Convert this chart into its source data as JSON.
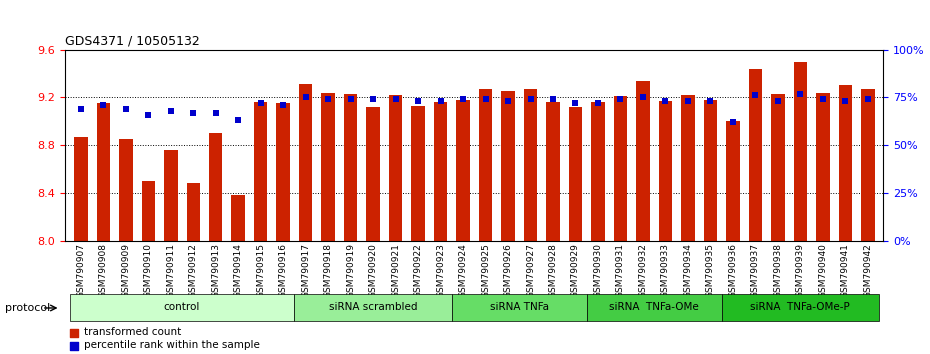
{
  "title": "GDS4371 / 10505132",
  "samples": [
    "GSM790907",
    "GSM790908",
    "GSM790909",
    "GSM790910",
    "GSM790911",
    "GSM790912",
    "GSM790913",
    "GSM790914",
    "GSM790915",
    "GSM790916",
    "GSM790917",
    "GSM790918",
    "GSM790919",
    "GSM790920",
    "GSM790921",
    "GSM790922",
    "GSM790923",
    "GSM790924",
    "GSM790925",
    "GSM790926",
    "GSM790927",
    "GSM790928",
    "GSM790929",
    "GSM790930",
    "GSM790931",
    "GSM790932",
    "GSM790933",
    "GSM790934",
    "GSM790935",
    "GSM790936",
    "GSM790937",
    "GSM790938",
    "GSM790939",
    "GSM790940",
    "GSM790941",
    "GSM790942"
  ],
  "bar_values": [
    8.87,
    9.15,
    8.85,
    8.5,
    8.76,
    8.48,
    8.9,
    8.38,
    9.16,
    9.15,
    9.31,
    9.24,
    9.23,
    9.12,
    9.22,
    9.13,
    9.16,
    9.18,
    9.27,
    9.25,
    9.27,
    9.16,
    9.12,
    9.16,
    9.21,
    9.34,
    9.17,
    9.22,
    9.18,
    9.0,
    9.44,
    9.23,
    9.5,
    9.24,
    9.3,
    9.27
  ],
  "percentile_values": [
    69,
    71,
    69,
    66,
    68,
    67,
    67,
    63,
    72,
    71,
    75,
    74,
    74,
    74,
    74,
    73,
    73,
    74,
    74,
    73,
    74,
    74,
    72,
    72,
    74,
    75,
    73,
    73,
    73,
    62,
    76,
    73,
    77,
    74,
    73,
    74
  ],
  "groups": [
    {
      "label": "control",
      "start": 0,
      "end": 10,
      "color": "#ccffcc"
    },
    {
      "label": "siRNA scrambled",
      "start": 10,
      "end": 17,
      "color": "#99ee99"
    },
    {
      "label": "siRNA TNFa",
      "start": 17,
      "end": 23,
      "color": "#66dd66"
    },
    {
      "label": "siRNA  TNFa-OMe",
      "start": 23,
      "end": 29,
      "color": "#44cc44"
    },
    {
      "label": "siRNA  TNFa-OMe-P",
      "start": 29,
      "end": 36,
      "color": "#22bb22"
    }
  ],
  "ylim_left": [
    8.0,
    9.6
  ],
  "ylim_right": [
    0,
    100
  ],
  "yticks_left": [
    8.0,
    8.4,
    8.8,
    9.2,
    9.6
  ],
  "yticks_right": [
    0,
    25,
    50,
    75,
    100
  ],
  "bar_color": "#cc2200",
  "dot_color": "#0000cc",
  "background_color": "#ffffff",
  "grid_color": "#000000",
  "legend_items": [
    {
      "label": "transformed count",
      "color": "#cc2200",
      "marker": "s"
    },
    {
      "label": "percentile rank within the sample",
      "color": "#0000cc",
      "marker": "s"
    }
  ],
  "protocol_label": "protocol"
}
